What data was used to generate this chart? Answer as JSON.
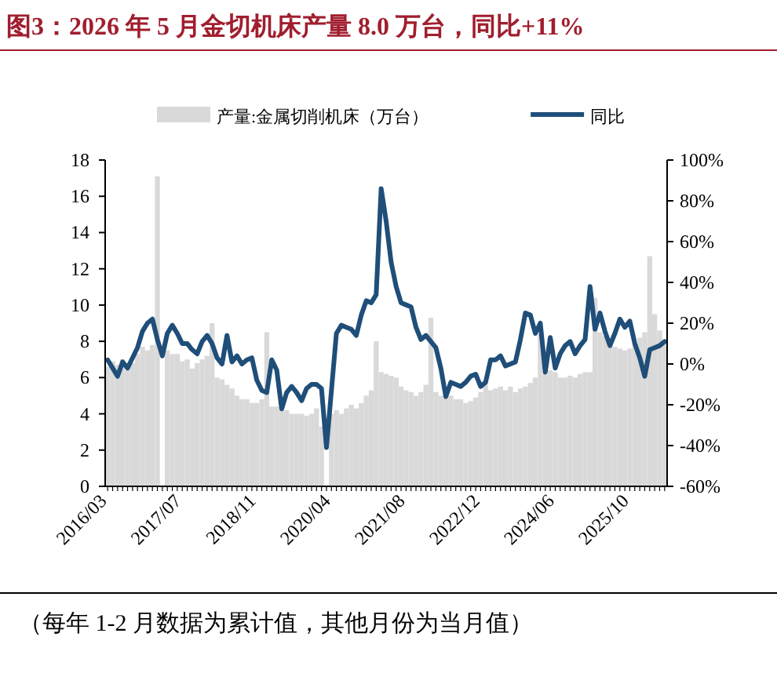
{
  "chart_data": {
    "type": "bar",
    "title": "图3：2026 年 5 月金切机床产量 8.0 万台，同比+11%",
    "categories": [
      "2016/03",
      null,
      null,
      null,
      null,
      null,
      null,
      null,
      null,
      null,
      null,
      null,
      null,
      null,
      null,
      "2017/07",
      null,
      null,
      null,
      null,
      null,
      null,
      null,
      null,
      null,
      null,
      null,
      null,
      null,
      null,
      "2018/11",
      null,
      null,
      null,
      null,
      null,
      null,
      null,
      null,
      null,
      null,
      null,
      null,
      null,
      null,
      "2020/04",
      null,
      null,
      null,
      null,
      null,
      null,
      null,
      null,
      null,
      null,
      null,
      null,
      null,
      null,
      "2021/08",
      null,
      null,
      null,
      null,
      null,
      null,
      null,
      null,
      null,
      null,
      null,
      null,
      null,
      null,
      "2022/12",
      null,
      null,
      null,
      null,
      null,
      null,
      null,
      null,
      null,
      null,
      null,
      null,
      null,
      null,
      "2024/06",
      null,
      null,
      null,
      null,
      null,
      null,
      null,
      null,
      null,
      null,
      null,
      null,
      null,
      null,
      "2025/10",
      null,
      null,
      null,
      null,
      null,
      null,
      null
    ],
    "series": [
      {
        "name": "产量:金属切削机床（万台）",
        "type": "bar",
        "color": "#d9d9d9",
        "values": [
          6.6,
          6.9,
          6.7,
          7.0,
          6.6,
          6.8,
          7.3,
          7.7,
          7.5,
          7.8,
          17.1,
          null,
          7.5,
          7.3,
          7.3,
          6.9,
          7.0,
          6.5,
          6.8,
          7.0,
          7.2,
          9.0,
          6.0,
          5.9,
          5.6,
          5.4,
          5.0,
          4.8,
          4.8,
          4.6,
          4.6,
          4.8,
          8.5,
          4.4,
          4.4,
          4.3,
          4.2,
          4.0,
          4.0,
          4.0,
          3.9,
          4.0,
          4.3,
          3.3,
          null,
          4.0,
          4.2,
          4.0,
          4.3,
          4.5,
          4.3,
          4.6,
          5.0,
          5.3,
          8.0,
          6.3,
          6.2,
          6.1,
          6.0,
          5.5,
          5.3,
          5.2,
          5.0,
          5.2,
          5.6,
          9.3,
          5.2,
          5.0,
          5.0,
          5.0,
          4.8,
          4.8,
          4.6,
          4.7,
          4.9,
          5.2,
          5.6,
          5.3,
          5.4,
          5.5,
          5.3,
          5.5,
          5.2,
          5.4,
          5.5,
          5.7,
          6.0,
          8.4,
          6.2,
          6.4,
          6.3,
          6.0,
          6.0,
          6.1,
          6.0,
          6.2,
          6.3,
          6.3,
          10.4,
          8.5,
          8.3,
          7.8,
          7.7,
          7.6,
          7.5,
          7.6,
          7.9,
          8.2,
          8.5,
          12.7,
          9.5,
          8.6,
          8.0
        ]
      },
      {
        "name": "同比",
        "type": "line",
        "axis": "y2",
        "color": "#1f4e79",
        "values": [
          2,
          -2,
          -6,
          1,
          -2,
          3,
          8,
          16,
          20,
          22,
          12,
          4,
          15,
          19,
          15,
          10,
          10,
          7,
          5,
          11,
          14,
          10,
          3,
          0,
          14,
          1,
          4,
          0,
          2,
          3,
          -8,
          -13,
          -14,
          2,
          -3,
          -22,
          -14,
          -11,
          -14,
          -18,
          -12,
          -10,
          -10,
          -12,
          -41,
          -13,
          15,
          19,
          18,
          17,
          14,
          24,
          31,
          30,
          34,
          86,
          70,
          50,
          38,
          30,
          29,
          28,
          18,
          12,
          14,
          11,
          8,
          -2,
          -16,
          -9,
          -10,
          -11,
          -9,
          -6,
          -5,
          -11,
          -9,
          2,
          2,
          4,
          -1,
          0,
          1,
          12,
          25,
          24,
          15,
          20,
          -4,
          13,
          -2,
          5,
          9,
          11,
          5,
          9,
          12,
          38,
          17,
          25,
          16,
          9,
          15,
          22,
          18,
          21,
          10,
          3,
          -6,
          7,
          8,
          9,
          11
        ]
      }
    ],
    "ylim": [
      0,
      18
    ],
    "yticks": [
      0,
      2,
      4,
      6,
      8,
      10,
      12,
      14,
      16,
      18
    ],
    "y2lim": [
      -60,
      100
    ],
    "y2ticks": [
      {
        "value": -60,
        "label": "-60%"
      },
      {
        "value": -40,
        "label": "-40%"
      },
      {
        "value": -20,
        "label": "-20%"
      },
      {
        "value": 0,
        "label": "0%"
      },
      {
        "value": 20,
        "label": "20%"
      },
      {
        "value": 40,
        "label": "40%"
      },
      {
        "value": 60,
        "label": "60%"
      },
      {
        "value": 80,
        "label": "80%"
      },
      {
        "value": 100,
        "label": "100%"
      }
    ],
    "legend": "top",
    "grid": false,
    "annotations": [
      "（每年 1-2 月数据为累计值，其他月份为当月值）"
    ]
  }
}
